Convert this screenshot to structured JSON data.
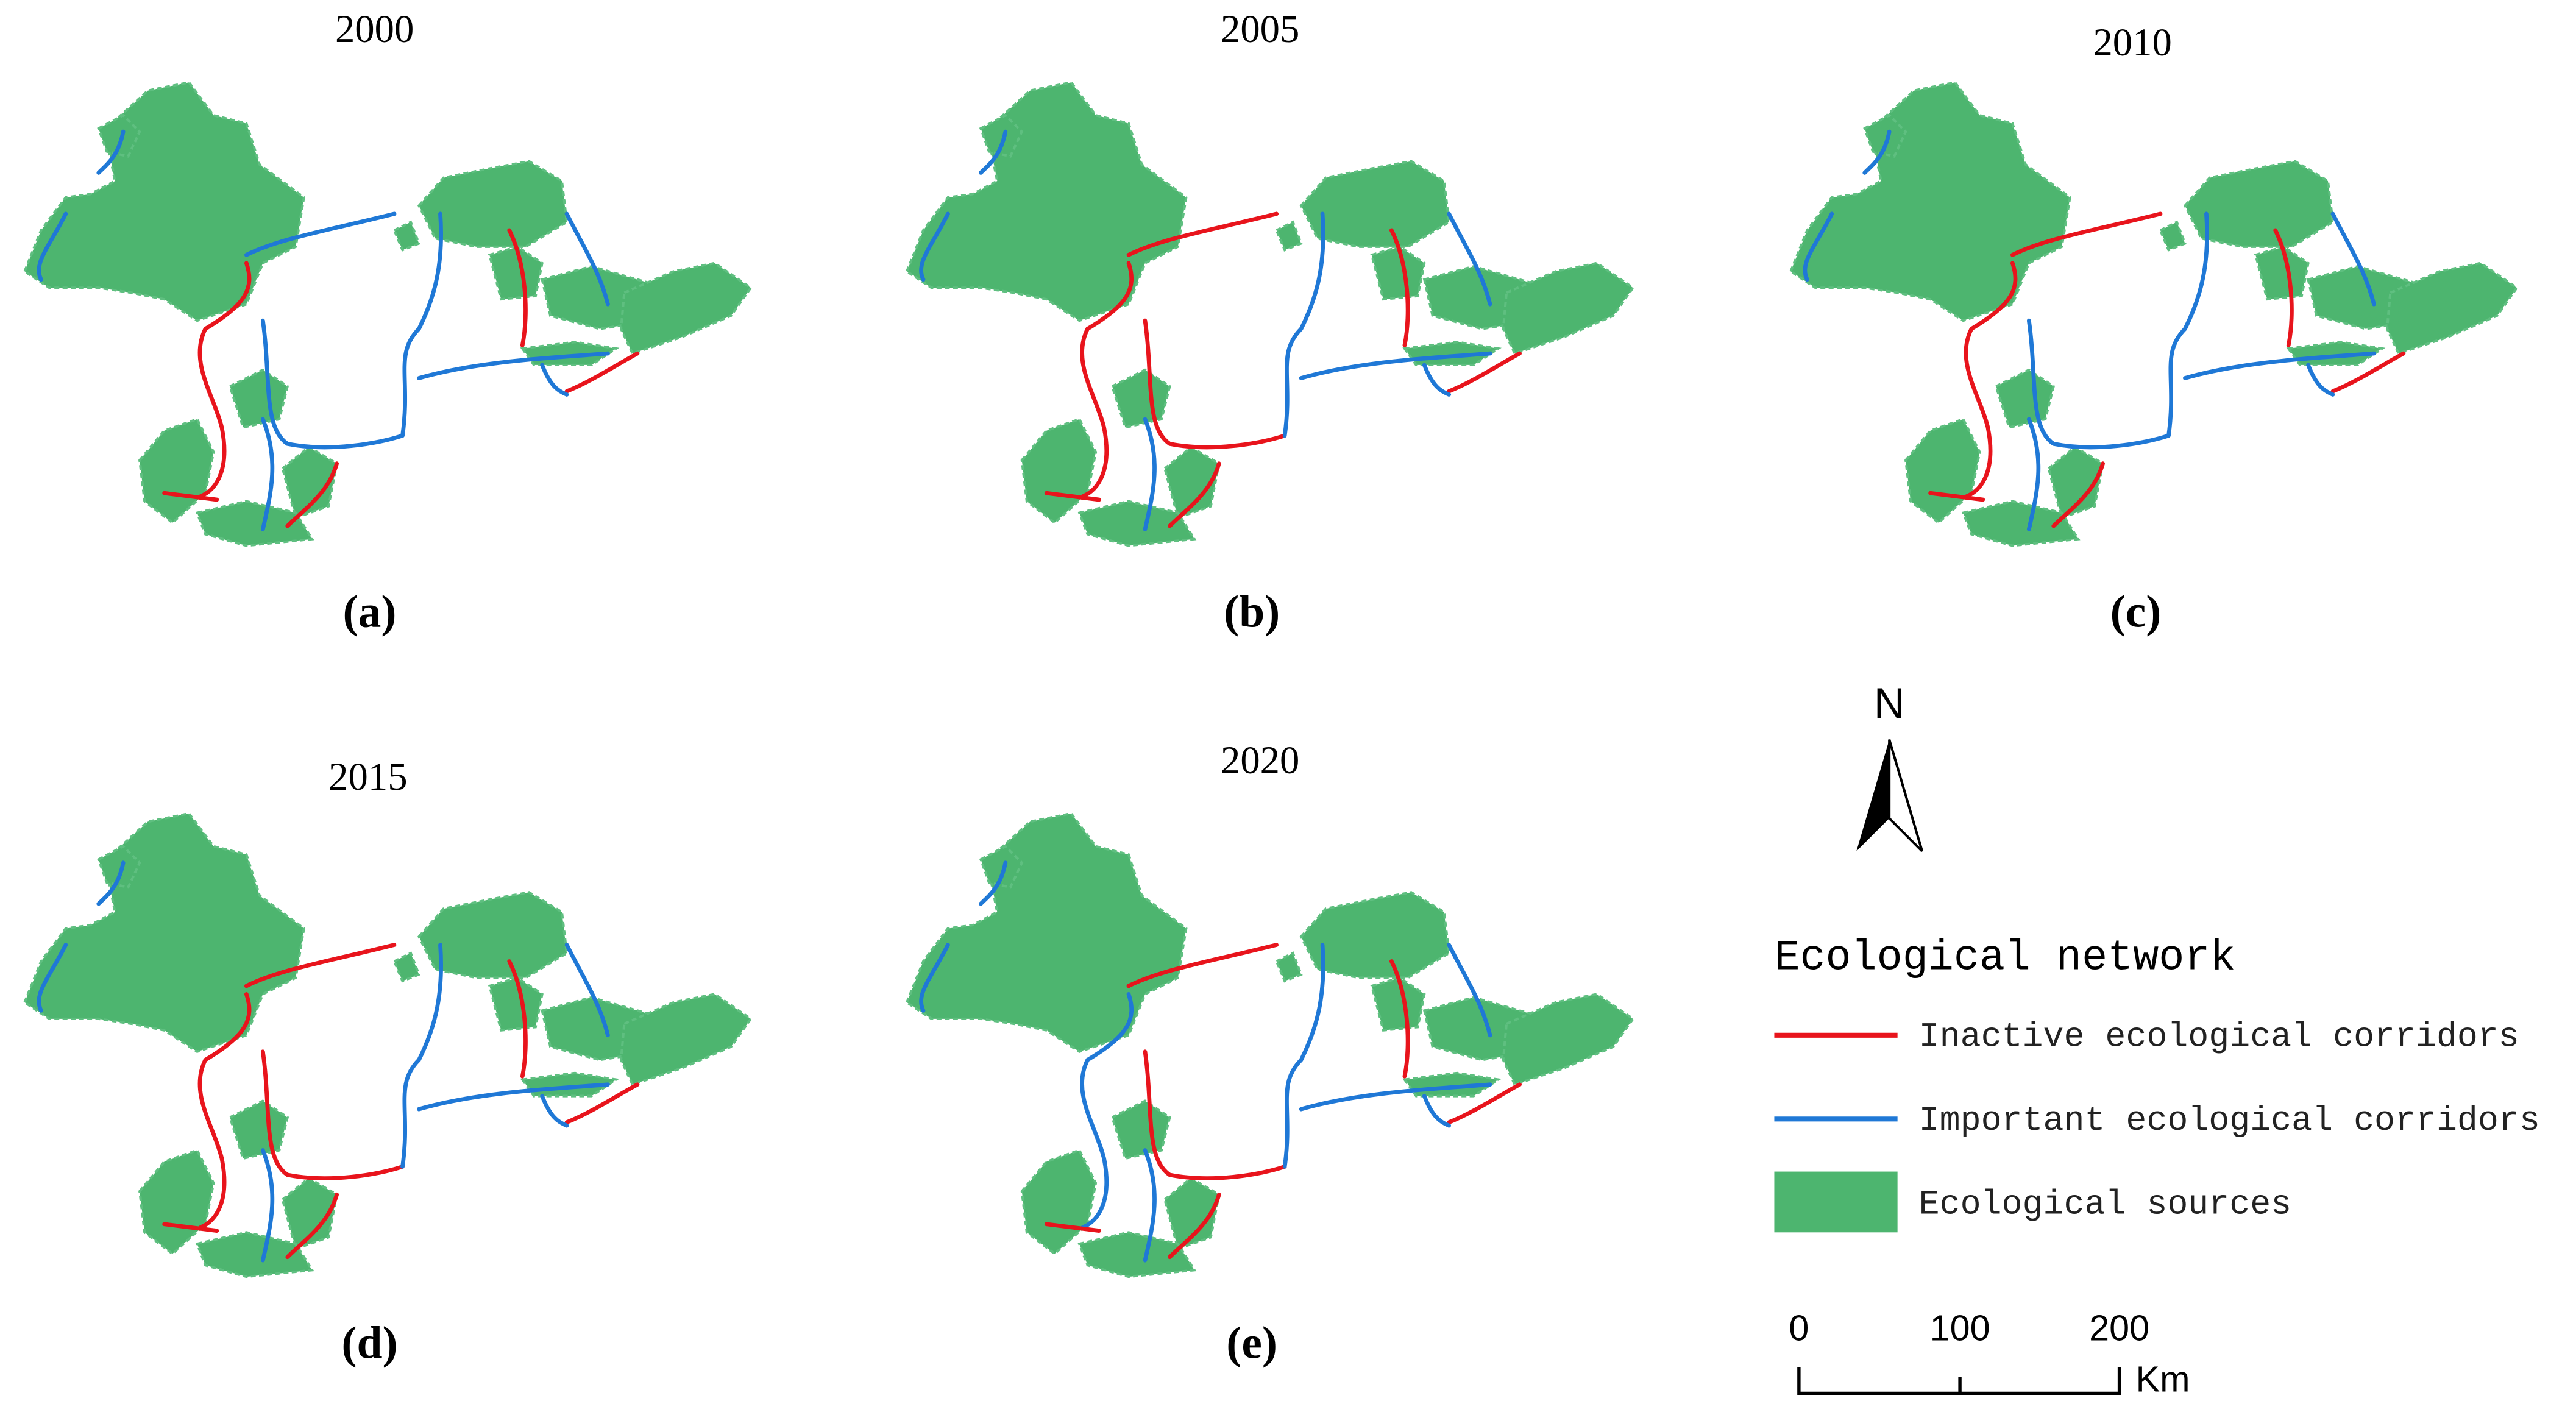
{
  "panels": [
    {
      "year": "2000",
      "label": "(a)"
    },
    {
      "year": "2005",
      "label": "(b)"
    },
    {
      "year": "2010",
      "label": "(c)"
    },
    {
      "year": "2015",
      "label": "(d)"
    },
    {
      "year": "2020",
      "label": "(e)"
    }
  ],
  "legend": {
    "north": "N",
    "title": "Ecological network",
    "items": [
      "Inactive ecological corridors",
      "Important ecological corridors",
      "Ecological sources"
    ]
  },
  "scale_bar": {
    "ticks": [
      "0",
      "100",
      "200"
    ],
    "unit": "Km"
  }
}
